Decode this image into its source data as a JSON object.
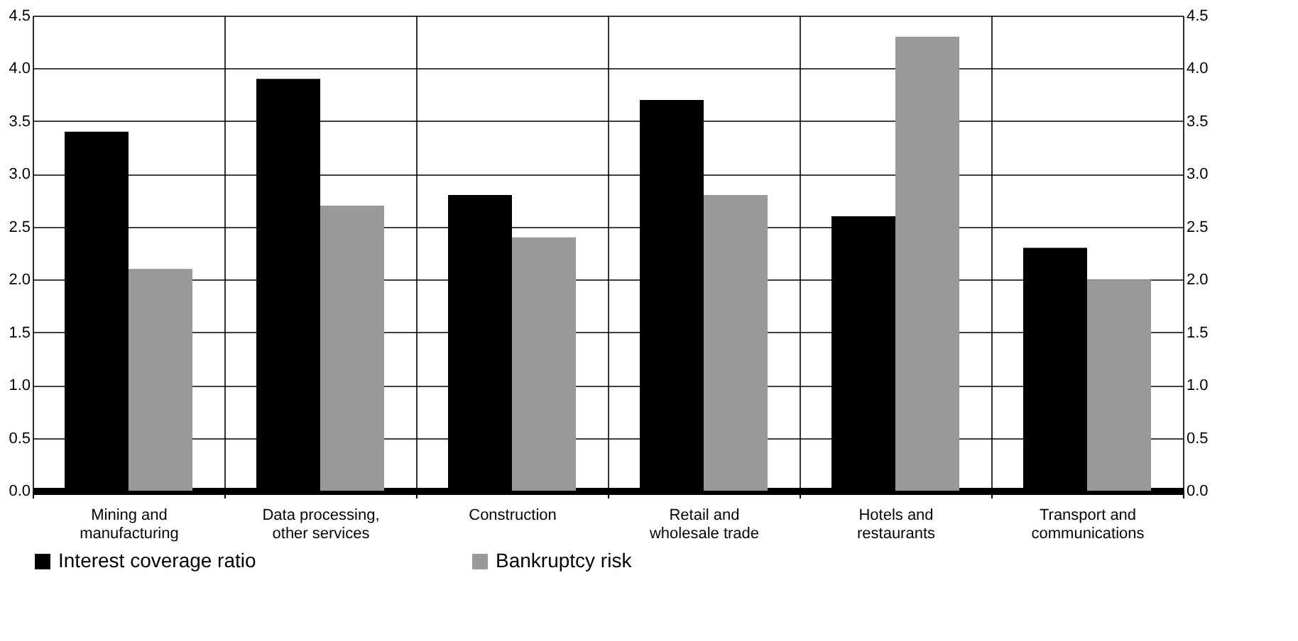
{
  "chart_data": {
    "type": "bar",
    "categories": [
      "Mining and manufacturing",
      "Data processing, other services",
      "Construction",
      "Retail and wholesale trade",
      "Hotels and restaurants",
      "Transport and communications"
    ],
    "series": [
      {
        "name": "Interest coverage ratio",
        "color": "#000000",
        "values": [
          3.4,
          3.9,
          2.8,
          3.7,
          2.6,
          2.3
        ]
      },
      {
        "name": "Bankruptcy risk",
        "color": "#999999",
        "values": [
          2.1,
          2.7,
          2.4,
          2.8,
          4.3,
          2.0
        ]
      }
    ],
    "ylim": [
      0,
      4.5
    ],
    "yticks": [
      {
        "value": 0,
        "label": "0.0"
      },
      {
        "value": 0.5,
        "label": "0.5"
      },
      {
        "value": 1,
        "label": "1.0"
      },
      {
        "value": 1.5,
        "label": "1.5"
      },
      {
        "value": 2,
        "label": "2.0"
      },
      {
        "value": 2.5,
        "label": "2.5"
      },
      {
        "value": 3,
        "label": "3.0"
      },
      {
        "value": 3.5,
        "label": "3.5"
      },
      {
        "value": 4,
        "label": "4.0"
      },
      {
        "value": 4.5,
        "label": "4.5"
      }
    ],
    "y2lim": [
      0,
      4.5
    ],
    "y2ticks": [
      {
        "value": 0,
        "label": "0.0"
      },
      {
        "value": 0.5,
        "label": "0.5"
      },
      {
        "value": 1,
        "label": "1.0"
      },
      {
        "value": 1.5,
        "label": "1.5"
      },
      {
        "value": 2,
        "label": "2.0"
      },
      {
        "value": 2.5,
        "label": "2.5"
      },
      {
        "value": 3,
        "label": "3.0"
      },
      {
        "value": 3.5,
        "label": "3.5"
      },
      {
        "value": 4,
        "label": "4.0"
      },
      {
        "value": 4.5,
        "label": "4.5"
      }
    ],
    "grid": true,
    "legend": "bottom left"
  }
}
